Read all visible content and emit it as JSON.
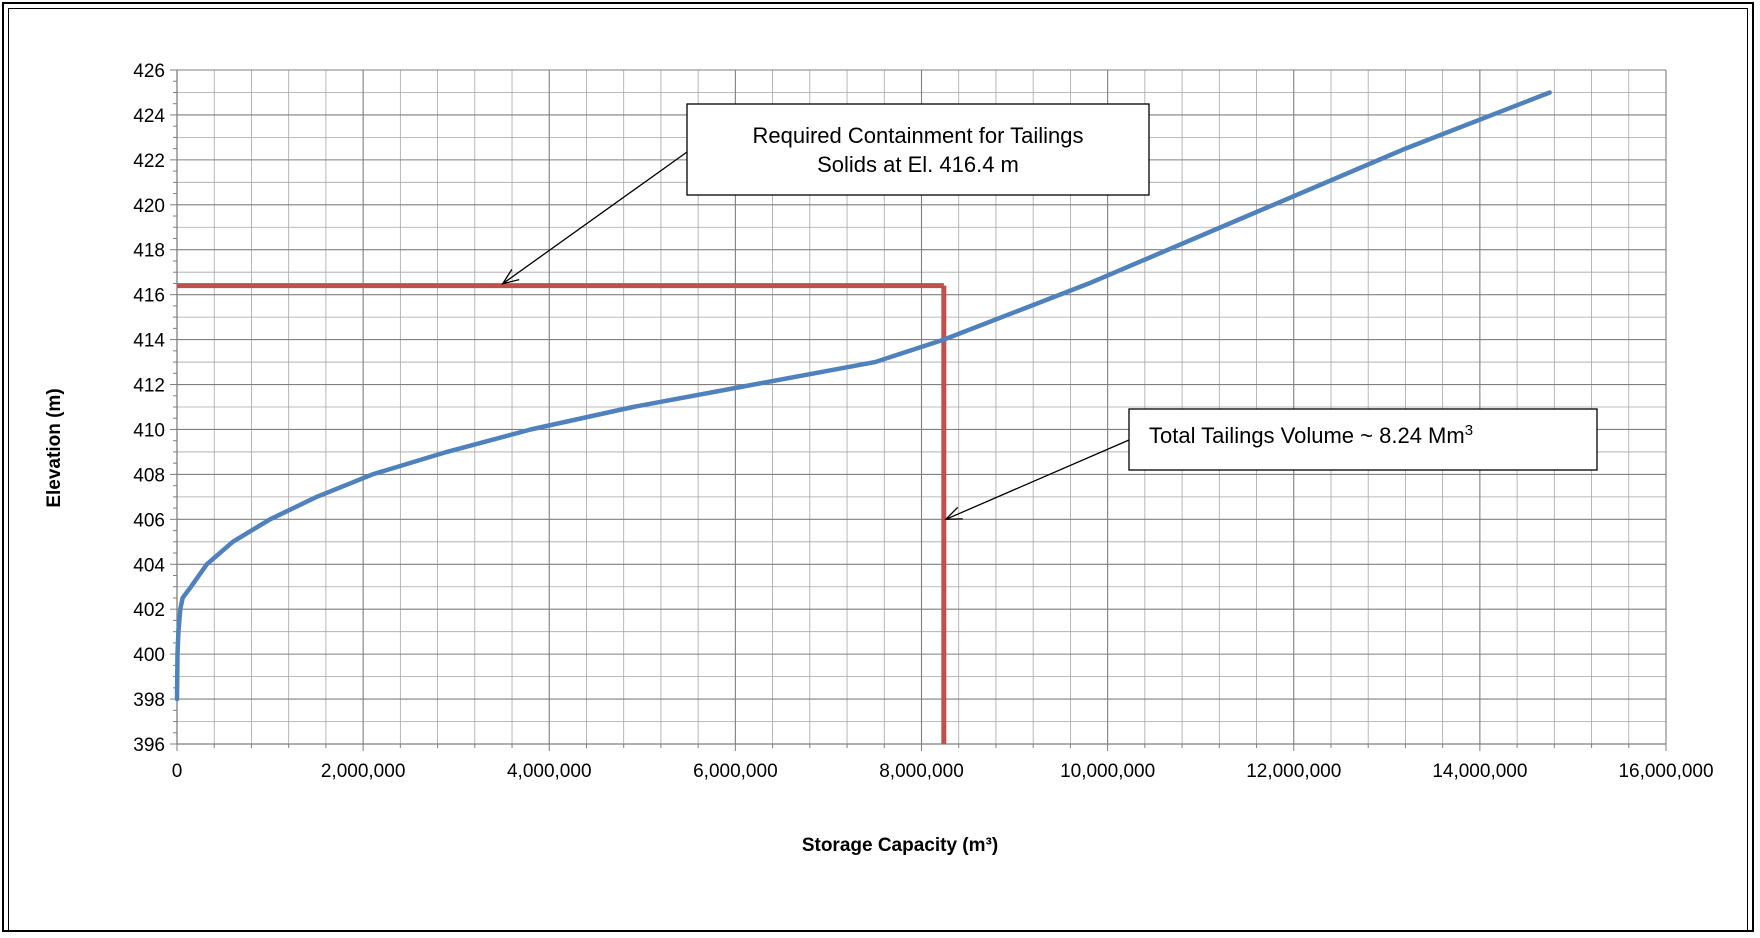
{
  "chart_data": {
    "type": "line",
    "xlabel": "Storage Capacity (m³)",
    "ylabel": "Elevation (m)",
    "xlim": [
      0,
      16000000
    ],
    "ylim": [
      396,
      426
    ],
    "x_ticks": [
      0,
      2000000,
      4000000,
      6000000,
      8000000,
      10000000,
      12000000,
      14000000,
      16000000
    ],
    "x_tick_labels": [
      "0",
      "2,000,000",
      "4,000,000",
      "6,000,000",
      "8,000,000",
      "10,000,000",
      "12,000,000",
      "14,000,000",
      "16,000,000"
    ],
    "y_ticks": [
      396,
      398,
      400,
      402,
      404,
      406,
      408,
      410,
      412,
      414,
      416,
      418,
      420,
      422,
      424,
      426
    ],
    "y_tick_labels": [
      "396",
      "398",
      "400",
      "402",
      "404",
      "406",
      "408",
      "410",
      "412",
      "414",
      "416",
      "418",
      "420",
      "422",
      "424",
      "426"
    ],
    "grid": true,
    "series": [
      {
        "color": "#4F81BD",
        "x": [
          0,
          5000,
          15000,
          35000,
          60000,
          150000,
          320000,
          600000,
          1000000,
          1500000,
          2100000,
          2900000,
          3800000,
          4900000,
          6200000,
          7500000,
          8240000,
          9800000,
          11500000,
          13200000,
          14750000
        ],
        "y": [
          398,
          400,
          401,
          402,
          402.5,
          403,
          404,
          405,
          406,
          407,
          408,
          409,
          410,
          411,
          412,
          413,
          414,
          416.5,
          419.5,
          422.5,
          425
        ]
      }
    ],
    "reference_lines": [
      {
        "color": "#C0504D",
        "from": [
          0,
          416.4
        ],
        "to": [
          8240000,
          416.4
        ]
      },
      {
        "color": "#C0504D",
        "from": [
          8240000,
          416.4
        ],
        "to": [
          8240000,
          396
        ]
      }
    ],
    "annotations": [
      {
        "lines": [
          "Required Containment for Tailings",
          "Solids at El. 416.4 m"
        ],
        "points_to": [
          3500000,
          416.4
        ]
      },
      {
        "lines": [
          "Total Tailings Volume ~ 8.24 Mm",
          "3"
        ],
        "points_to": [
          8240000,
          406
        ]
      }
    ]
  }
}
